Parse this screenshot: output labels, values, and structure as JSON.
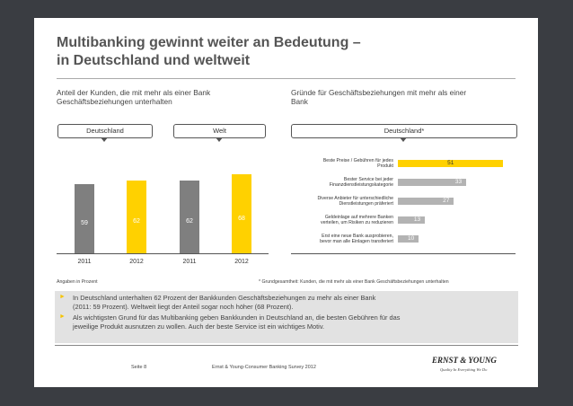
{
  "title_line1": "Multibanking gewinnt weiter an Bedeutung –",
  "title_line2": "in Deutschland und weltweit",
  "left": {
    "subtitle_line1": "Anteil der Kunden, die mit mehr als einer Bank",
    "subtitle_line2": "Geschäftsbeziehungen unterhalten",
    "pill_de": "Deutschland",
    "pill_welt": "Welt",
    "note": "Angaben in Prozent"
  },
  "right": {
    "subtitle_line1": "Gründe für  Geschäftsbeziehungen mit mehr als einer",
    "subtitle_line2": "Bank",
    "pill": "Deutschland*",
    "footnote": "* Grundgesamtheit: Kunden, die mit mehr als einer Bank Geschäftsbeziehungen unterhalten"
  },
  "chart_data": [
    {
      "type": "bar",
      "categories": [
        "2011",
        "2012",
        "2011",
        "2012"
      ],
      "groups": [
        "Deutschland",
        "Deutschland",
        "Welt",
        "Welt"
      ],
      "values": [
        59,
        62,
        62,
        68
      ],
      "colors": [
        "#7f7f7f",
        "#ffd100",
        "#7f7f7f",
        "#ffd100"
      ]
    },
    {
      "type": "bar",
      "orientation": "horizontal",
      "categories": [
        [
          "Beste Preise / Gebühren für jedes",
          "Produkt"
        ],
        [
          "Bester Service bei jeder",
          "Finanzdienstleistungskategorie"
        ],
        [
          "Diverse Anbieter für unterschiedliche",
          "Dienstleistungen präferiert"
        ],
        [
          "Geldeinlage auf mehrere Banken",
          "verteilen, um Risiken zu reduzieren"
        ],
        [
          "Erst eine neue Bank ausprobieren,",
          "bevor man alle Einlagen transferiert"
        ]
      ],
      "values": [
        51,
        33,
        27,
        13,
        10
      ],
      "colors": [
        "#ffd100",
        "#b3b3b3",
        "#b3b3b3",
        "#b3b3b3",
        "#b3b3b3"
      ]
    }
  ],
  "bullets": [
    "In Deutschland unterhalten 62 Prozent der Bankkunden Geschäftsbeziehungen zu mehr als einer Bank",
    "(2011: 59 Prozent). Weltweit liegt der Anteil sogar noch höher (68 Prozent).",
    "Als wichtigsten Grund für das Multibanking geben Bankkunden in Deutschland an, die besten Gebühren für das",
    "jeweilige Produkt ausnutzen zu wollen. Auch der beste Service ist ein wichtiges Motiv."
  ],
  "footer": {
    "page": "Seite 8",
    "source": "Ernst & Young-Consumer Banking Survey 2012",
    "logo": "ERNST & YOUNG",
    "tagline": "Quality In Everything We Do"
  }
}
